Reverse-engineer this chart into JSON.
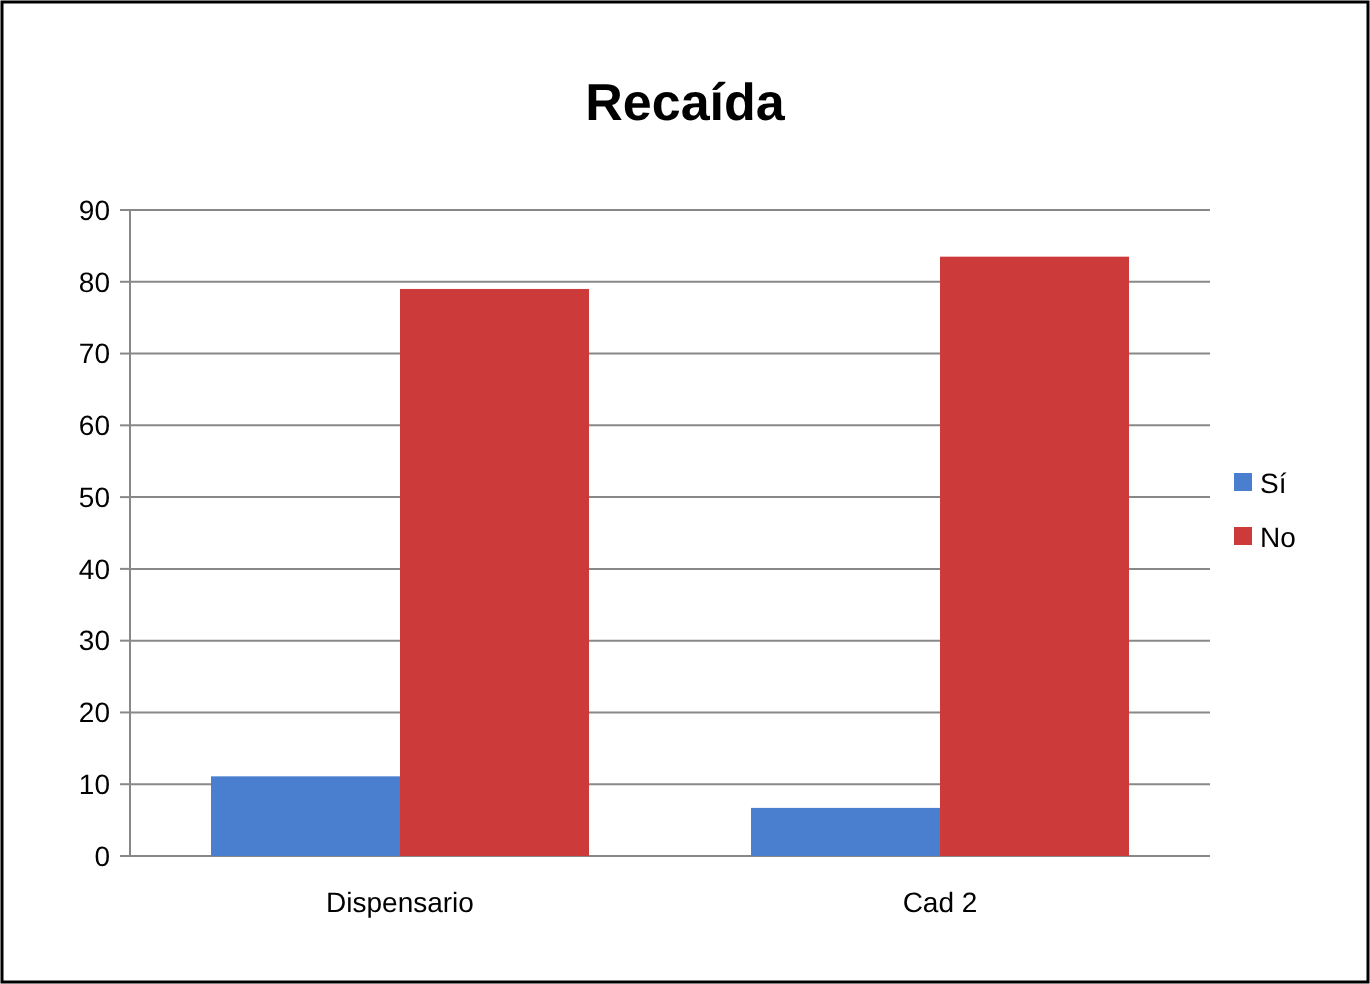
{
  "chart_data": {
    "type": "bar",
    "title": "Recaída",
    "categories": [
      "Dispensario",
      "Cad 2"
    ],
    "series": [
      {
        "name": "Sí",
        "color": "#4a7fd0",
        "values": [
          11.1,
          6.7
        ]
      },
      {
        "name": "No",
        "color": "#cc3b3a",
        "values": [
          79,
          83.5
        ]
      }
    ],
    "ylim": [
      0,
      90
    ],
    "yticks": [
      0,
      10,
      20,
      30,
      40,
      50,
      60,
      70,
      80,
      90
    ],
    "grid": "y",
    "legend": "right"
  }
}
